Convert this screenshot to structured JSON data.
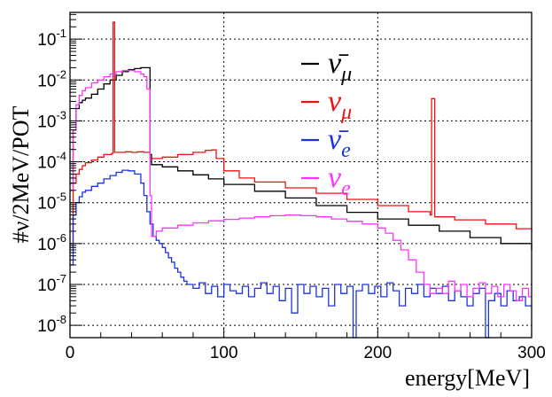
{
  "chart_data": {
    "type": "line",
    "subtype": "step-histogram",
    "title": "",
    "xlabel": "energy[MeV]",
    "ylabel": "#ν/2MeV/POT",
    "xlim": [
      0,
      300
    ],
    "ylim": [
      5e-09,
      0.45
    ],
    "yscale": "log",
    "grid": true,
    "legend_position": "top-right",
    "x_ticks": [
      "0",
      "100",
      "200",
      "300"
    ],
    "y_ticks": [
      {
        "base": "10",
        "exp": "-1"
      },
      {
        "base": "10",
        "exp": "-2"
      },
      {
        "base": "10",
        "exp": "-3"
      },
      {
        "base": "10",
        "exp": "-4"
      },
      {
        "base": "10",
        "exp": "-5"
      },
      {
        "base": "10",
        "exp": "-6"
      },
      {
        "base": "10",
        "exp": "-7"
      },
      {
        "base": "10",
        "exp": "-8"
      }
    ],
    "series": [
      {
        "id": "numubar",
        "name": "ν̄μ",
        "legend_base": "ν̄",
        "legend_sub": "μ",
        "color": "#000000",
        "points": [
          [
            0,
            3e-05
          ],
          [
            2,
            0.0006
          ],
          [
            4,
            0.002
          ],
          [
            6,
            0.0028
          ],
          [
            8,
            0.0032
          ],
          [
            10,
            0.0036
          ],
          [
            14,
            0.0045
          ],
          [
            18,
            0.006
          ],
          [
            22,
            0.008
          ],
          [
            26,
            0.01
          ],
          [
            30,
            0.013
          ],
          [
            34,
            0.016
          ],
          [
            38,
            0.018
          ],
          [
            42,
            0.019
          ],
          [
            46,
            0.02
          ],
          [
            50,
            0.02
          ],
          [
            52,
            0.00015
          ],
          [
            53,
            8.5e-05
          ],
          [
            60,
            7.5e-05
          ],
          [
            70,
            6e-05
          ],
          [
            80,
            4.8e-05
          ],
          [
            90,
            3.8e-05
          ],
          [
            100,
            2.8e-05
          ],
          [
            120,
            1.9e-05
          ],
          [
            140,
            1.3e-05
          ],
          [
            160,
            8.5e-06
          ],
          [
            180,
            5.8e-06
          ],
          [
            200,
            4e-06
          ],
          [
            220,
            2.8e-06
          ],
          [
            240,
            2e-06
          ],
          [
            260,
            1.4e-06
          ],
          [
            280,
            1e-06
          ],
          [
            300,
            7e-07
          ]
        ]
      },
      {
        "id": "numu",
        "name": "νμ",
        "legend_base": "ν",
        "legend_sub": "μ",
        "color": "#ee1111",
        "points": [
          [
            0,
            1e-06
          ],
          [
            2,
            3e-05
          ],
          [
            4,
            5e-05
          ],
          [
            6,
            6.5e-05
          ],
          [
            8,
            8e-05
          ],
          [
            10,
            9.5e-05
          ],
          [
            14,
            0.00011
          ],
          [
            18,
            0.00013
          ],
          [
            22,
            0.00015
          ],
          [
            27,
            0.00016
          ],
          [
            28,
            0.26
          ],
          [
            29,
            0.00017
          ],
          [
            32,
            0.00017
          ],
          [
            36,
            0.000175
          ],
          [
            40,
            0.00017
          ],
          [
            44,
            0.000175
          ],
          [
            48,
            0.00017
          ],
          [
            50,
            0.00017
          ],
          [
            52,
            0.00012
          ],
          [
            60,
            0.00013
          ],
          [
            70,
            0.00015
          ],
          [
            80,
            0.00017
          ],
          [
            88,
            0.00019
          ],
          [
            92,
            0.000195
          ],
          [
            95,
            0.00012
          ],
          [
            100,
            6e-05
          ],
          [
            110,
            4e-05
          ],
          [
            120,
            3.2e-05
          ],
          [
            140,
            2.3e-05
          ],
          [
            160,
            1.7e-05
          ],
          [
            180,
            1.2e-05
          ],
          [
            200,
            8.5e-06
          ],
          [
            220,
            6e-06
          ],
          [
            234,
            5e-06
          ],
          [
            235,
            0.0035
          ],
          [
            237,
            4.5e-06
          ],
          [
            250,
            3.8e-06
          ],
          [
            270,
            3e-06
          ],
          [
            290,
            2.3e-06
          ],
          [
            300,
            2e-06
          ]
        ]
      },
      {
        "id": "nuebar",
        "name": "ν̄e",
        "legend_base": "ν̄",
        "legend_sub": "e",
        "color": "#1a33dd",
        "points": [
          [
            0,
            3e-07
          ],
          [
            2,
            5e-06
          ],
          [
            4,
            1e-05
          ],
          [
            6,
            1.4e-05
          ],
          [
            8,
            1.8e-05
          ],
          [
            10,
            2e-05
          ],
          [
            14,
            2.5e-05
          ],
          [
            18,
            3e-05
          ],
          [
            22,
            3.8e-05
          ],
          [
            26,
            4.6e-05
          ],
          [
            30,
            5.5e-05
          ],
          [
            34,
            6.2e-05
          ],
          [
            38,
            6e-05
          ],
          [
            42,
            5e-05
          ],
          [
            46,
            3e-05
          ],
          [
            48,
            1.5e-05
          ],
          [
            50,
            6e-06
          ],
          [
            52,
            3e-06
          ],
          [
            54,
            1.5e-06
          ],
          [
            56,
            1.2e-06
          ],
          [
            58,
            1e-06
          ],
          [
            60,
            8e-07
          ],
          [
            62,
            6e-07
          ],
          [
            64,
            4.5e-07
          ],
          [
            66,
            3.5e-07
          ],
          [
            68,
            2.5e-07
          ],
          [
            70,
            2e-07
          ],
          [
            72,
            1.5e-07
          ],
          [
            74,
            1.2e-07
          ],
          [
            76,
            1e-07
          ],
          [
            80,
            8e-08
          ],
          [
            84,
            1.1e-07
          ],
          [
            88,
            6e-08
          ],
          [
            92,
            9e-08
          ],
          [
            96,
            5e-08
          ],
          [
            100,
            1e-07
          ],
          [
            104,
            7e-08
          ],
          [
            108,
            6e-08
          ],
          [
            112,
            9e-08
          ],
          [
            116,
            5e-08
          ],
          [
            120,
            8e-08
          ],
          [
            124,
            1.1e-07
          ],
          [
            128,
            6e-08
          ],
          [
            132,
            9e-08
          ],
          [
            136,
            4e-08
          ],
          [
            140,
            8e-08
          ],
          [
            144,
            2e-08
          ],
          [
            148,
            1e-07
          ],
          [
            152,
            6e-08
          ],
          [
            156,
            9e-08
          ],
          [
            160,
            5e-08
          ],
          [
            164,
            8e-08
          ],
          [
            168,
            3e-08
          ],
          [
            172,
            1e-07
          ],
          [
            176,
            6e-08
          ],
          [
            180,
            9e-08
          ],
          [
            184,
            5e-09
          ],
          [
            186,
            7e-08
          ],
          [
            190,
            1e-07
          ],
          [
            194,
            6e-08
          ],
          [
            198,
            9e-08
          ],
          [
            202,
            5e-08
          ],
          [
            206,
            1.1e-07
          ],
          [
            210,
            7e-08
          ],
          [
            214,
            3e-08
          ],
          [
            218,
            8e-08
          ],
          [
            222,
            6e-08
          ],
          [
            226,
            1e-07
          ],
          [
            230,
            5e-08
          ],
          [
            234,
            8e-08
          ],
          [
            238,
            6e-08
          ],
          [
            242,
            9e-08
          ],
          [
            246,
            4e-08
          ],
          [
            250,
            7e-08
          ],
          [
            254,
            5e-08
          ],
          [
            258,
            3e-08
          ],
          [
            262,
            6e-08
          ],
          [
            266,
            8e-08
          ],
          [
            270,
            5e-09
          ],
          [
            272,
            4e-08
          ],
          [
            276,
            6e-08
          ],
          [
            280,
            3e-08
          ],
          [
            284,
            7e-08
          ],
          [
            288,
            4e-08
          ],
          [
            292,
            5e-08
          ],
          [
            296,
            3e-08
          ],
          [
            300,
            3e-08
          ]
        ]
      },
      {
        "id": "nue",
        "name": "νe",
        "legend_base": "ν",
        "legend_sub": "e",
        "color": "#ff33ff",
        "points": [
          [
            0,
            2e-05
          ],
          [
            2,
            0.0006
          ],
          [
            4,
            0.0025
          ],
          [
            6,
            0.0042
          ],
          [
            8,
            0.0055
          ],
          [
            10,
            0.0065
          ],
          [
            14,
            0.0085
          ],
          [
            18,
            0.01
          ],
          [
            22,
            0.012
          ],
          [
            26,
            0.014
          ],
          [
            30,
            0.016
          ],
          [
            34,
            0.017
          ],
          [
            38,
            0.017
          ],
          [
            42,
            0.016
          ],
          [
            46,
            0.014
          ],
          [
            48,
            0.012
          ],
          [
            50,
            0.006
          ],
          [
            52,
            1.5e-05
          ],
          [
            53,
            1.5e-06
          ],
          [
            56,
            2e-06
          ],
          [
            60,
            2.4e-06
          ],
          [
            70,
            2.8e-06
          ],
          [
            80,
            3.2e-06
          ],
          [
            90,
            3.6e-06
          ],
          [
            100,
            3.9e-06
          ],
          [
            110,
            4.2e-06
          ],
          [
            120,
            4.5e-06
          ],
          [
            130,
            4.8e-06
          ],
          [
            140,
            5e-06
          ],
          [
            150,
            4.8e-06
          ],
          [
            160,
            4.5e-06
          ],
          [
            170,
            4e-06
          ],
          [
            180,
            3.5e-06
          ],
          [
            190,
            3e-06
          ],
          [
            200,
            2.4e-06
          ],
          [
            205,
            1.8e-06
          ],
          [
            210,
            1.2e-06
          ],
          [
            215,
            7e-07
          ],
          [
            220,
            4e-07
          ],
          [
            225,
            2e-07
          ],
          [
            230,
            1e-07
          ],
          [
            234,
            6e-08
          ],
          [
            238,
            8e-08
          ],
          [
            242,
            6e-08
          ],
          [
            246,
            1.2e-07
          ],
          [
            250,
            7e-08
          ],
          [
            254,
            1e-07
          ],
          [
            258,
            5e-08
          ],
          [
            262,
            8e-08
          ],
          [
            266,
            1.1e-07
          ],
          [
            270,
            6e-08
          ],
          [
            274,
            9e-08
          ],
          [
            278,
            5e-08
          ],
          [
            282,
            1e-07
          ],
          [
            286,
            7e-08
          ],
          [
            290,
            4e-08
          ],
          [
            294,
            8e-08
          ],
          [
            298,
            5e-08
          ],
          [
            300,
            5e-08
          ]
        ]
      }
    ]
  }
}
